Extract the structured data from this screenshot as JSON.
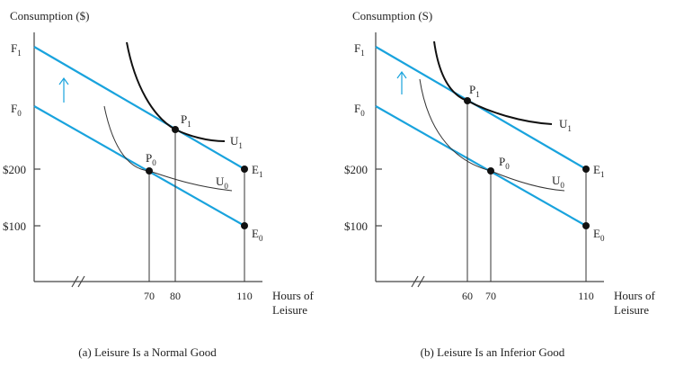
{
  "panels": [
    {
      "y_axis_title": "Consumption ($)",
      "x_axis_title_line1": "Hours of",
      "x_axis_title_line2": "Leisure",
      "y_labels": {
        "f1": "F",
        "f0": "F",
        "y200": "$200",
        "y100": "$100"
      },
      "x_ticks": [
        "70",
        "80",
        "110"
      ],
      "curves": {
        "u0": "U",
        "u1": "U"
      },
      "points": {
        "p0": "P",
        "p1": "P",
        "e0": "E",
        "e1": "E"
      },
      "caption": "(a) Leisure Is a Normal Good"
    },
    {
      "y_axis_title": "Consumption (S)",
      "x_axis_title_line1": "Hours of",
      "x_axis_title_line2": "Leisure",
      "y_labels": {
        "f1": "F",
        "f0": "F",
        "y200": "$200",
        "y100": "$100"
      },
      "x_ticks": [
        "60",
        "70",
        "110"
      ],
      "curves": {
        "u0": "U",
        "u1": "U"
      },
      "points": {
        "p0": "P",
        "p1": "P",
        "e0": "E",
        "e1": "E"
      },
      "caption": "(b) Leisure Is an Inferior Good"
    }
  ],
  "subscripts": {
    "zero": "0",
    "one": "1"
  },
  "colors": {
    "budget_line": "#19a3dd",
    "curve": "#111111",
    "axis": "#444444"
  },
  "icons": {
    "shift_arrow": "up-arrow-icon",
    "axis_break": "axis-break-icon"
  }
}
